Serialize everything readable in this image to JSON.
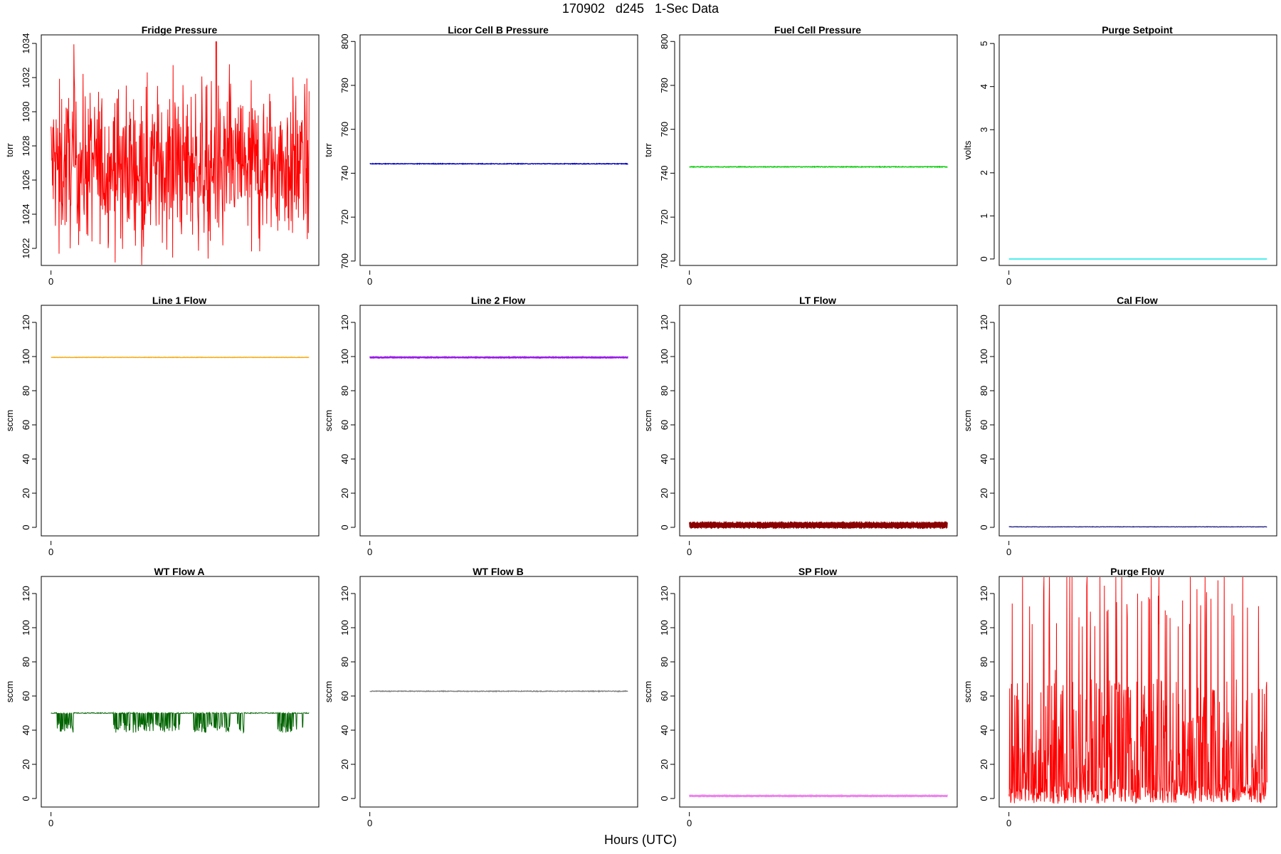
{
  "figure": {
    "title": "170902   d245   1-Sec Data",
    "xlabel": "Hours (UTC)"
  },
  "chart_data": [
    {
      "type": "line",
      "title": "Fridge Pressure",
      "ylabel": "torr",
      "ylim": [
        1021,
        1034.5
      ],
      "yticks": [
        1022,
        1024,
        1026,
        1028,
        1030,
        1032,
        1034
      ],
      "xticks": [
        0
      ],
      "xlim": [
        0,
        1
      ],
      "style": "noise",
      "mean": 1026.9,
      "amp": 2.2,
      "spike_max": 1034.1,
      "spike_min": 1021.3,
      "grid": false,
      "color": "#ff0000"
    },
    {
      "type": "line",
      "title": "Licor Cell B Pressure",
      "ylabel": "torr",
      "ylim": [
        698,
        803
      ],
      "yticks": [
        700,
        720,
        740,
        760,
        780,
        800
      ],
      "xticks": [
        0
      ],
      "xlim": [
        0,
        1
      ],
      "style": "flat",
      "mean": 744.3,
      "amp": 0.15,
      "grid": false,
      "color": "#0000cd"
    },
    {
      "type": "line",
      "title": "Fuel Cell Pressure",
      "ylabel": "torr",
      "ylim": [
        698,
        803
      ],
      "yticks": [
        700,
        720,
        740,
        760,
        780,
        800
      ],
      "xticks": [
        0
      ],
      "xlim": [
        0,
        1
      ],
      "style": "flat",
      "mean": 742.9,
      "amp": 0.15,
      "grid": false,
      "color": "#00cc00"
    },
    {
      "type": "line",
      "title": "Purge Setpoint",
      "ylabel": "volts",
      "ylim": [
        -0.15,
        5.2
      ],
      "yticks": [
        0,
        1,
        2,
        3,
        4,
        5
      ],
      "xticks": [
        0
      ],
      "xlim": [
        0,
        1
      ],
      "style": "flat",
      "mean": 0,
      "amp": 0,
      "grid": false,
      "color": "#00e5e5"
    },
    {
      "type": "line",
      "title": "Line 1 Flow",
      "ylabel": "sccm",
      "ylim": [
        -5,
        130
      ],
      "yticks": [
        0,
        20,
        40,
        60,
        80,
        100,
        120
      ],
      "xticks": [
        0
      ],
      "xlim": [
        0,
        1
      ],
      "style": "flat",
      "mean": 99.5,
      "amp": 0.1,
      "grid": false,
      "color": "#ffa500"
    },
    {
      "type": "line",
      "title": "Line 2 Flow",
      "ylabel": "sccm",
      "ylim": [
        -5,
        130
      ],
      "yticks": [
        0,
        20,
        40,
        60,
        80,
        100,
        120
      ],
      "xticks": [
        0
      ],
      "xlim": [
        0,
        1
      ],
      "style": "band",
      "mean": 99.5,
      "amp": 0.7,
      "grid": false,
      "color": "#9a1de8"
    },
    {
      "type": "line",
      "title": "LT Flow",
      "ylabel": "sccm",
      "ylim": [
        -5,
        130
      ],
      "yticks": [
        0,
        20,
        40,
        60,
        80,
        100,
        120
      ],
      "xticks": [
        0
      ],
      "xlim": [
        0,
        1
      ],
      "style": "band",
      "mean": 1.3,
      "amp": 2.2,
      "grid": false,
      "color": "#8b0000"
    },
    {
      "type": "line",
      "title": "Cal Flow",
      "ylabel": "sccm",
      "ylim": [
        -5,
        130
      ],
      "yticks": [
        0,
        20,
        40,
        60,
        80,
        100,
        120
      ],
      "xticks": [
        0
      ],
      "xlim": [
        0,
        1
      ],
      "style": "flat",
      "mean": 0.3,
      "amp": 0.1,
      "grid": false,
      "color": "#2b2b8c"
    },
    {
      "type": "line",
      "title": "WT Flow A",
      "ylabel": "sccm",
      "ylim": [
        -5,
        130
      ],
      "yticks": [
        0,
        20,
        40,
        60,
        80,
        100,
        120
      ],
      "xticks": [
        0
      ],
      "xlim": [
        0,
        1
      ],
      "style": "dips",
      "mean": 50,
      "amp": 0.5,
      "dip_min": 38.5,
      "grid": false,
      "color": "#006400"
    },
    {
      "type": "line",
      "title": "WT Flow B",
      "ylabel": "sccm",
      "ylim": [
        -5,
        130
      ],
      "yticks": [
        0,
        20,
        40,
        60,
        80,
        100,
        120
      ],
      "xticks": [
        0
      ],
      "xlim": [
        0,
        1
      ],
      "style": "flat",
      "mean": 62.8,
      "amp": 0.2,
      "grid": false,
      "color": "#808080"
    },
    {
      "type": "line",
      "title": "SP Flow",
      "ylabel": "sccm",
      "ylim": [
        -5,
        130
      ],
      "yticks": [
        0,
        20,
        40,
        60,
        80,
        100,
        120
      ],
      "xticks": [
        0
      ],
      "xlim": [
        0,
        1
      ],
      "style": "band",
      "mean": 1.5,
      "amp": 0.8,
      "grid": false,
      "color": "#ee82ee"
    },
    {
      "type": "line",
      "title": "Purge Flow",
      "ylabel": "sccm",
      "ylim": [
        -5,
        130
      ],
      "yticks": [
        0,
        20,
        40,
        60,
        80,
        100,
        120
      ],
      "xticks": [
        0
      ],
      "xlim": [
        0,
        1
      ],
      "style": "burst",
      "mean": 30,
      "amp": 30,
      "spike_max": 130,
      "spike_min": -3,
      "grid": false,
      "color": "#ff0000"
    }
  ]
}
